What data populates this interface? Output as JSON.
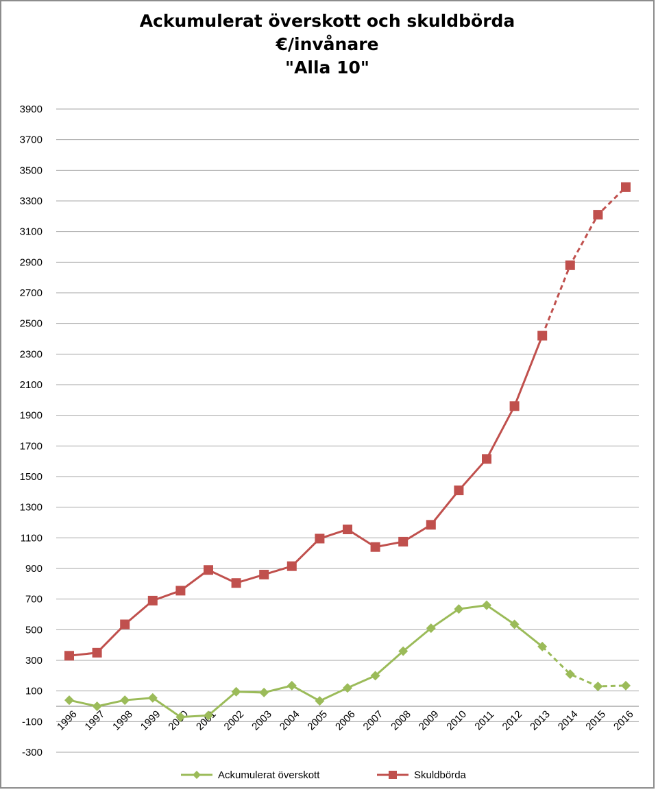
{
  "title": {
    "line1": "Ackumulerat överskott och skuldbörda",
    "line2": "€/invånare",
    "line3": "\"Alla  10\""
  },
  "colors": {
    "surplus": "#9bbb59",
    "debt": "#c0504d",
    "grid": "#a6a6a6"
  },
  "chart_data": {
    "type": "line",
    "title": "Ackumulerat överskott och skuldbörda €/invånare \"Alla  10\"",
    "xlabel": "",
    "ylabel": "",
    "x": [
      "1996",
      "1997",
      "1998",
      "1999",
      "2000",
      "2001",
      "2002",
      "2003",
      "2004",
      "2005",
      "2006",
      "2007",
      "2008",
      "2009",
      "2010",
      "2011",
      "2012",
      "2013",
      "2014",
      "2015",
      "2016"
    ],
    "ylim": [
      -300,
      3900
    ],
    "yticks": [
      3900,
      3700,
      3500,
      3300,
      3100,
      2900,
      2700,
      2500,
      2300,
      2100,
      1900,
      1700,
      1500,
      1300,
      1100,
      900,
      700,
      500,
      300,
      100,
      -100,
      -300
    ],
    "yticklabels": [
      "3900",
      "3700",
      "3500",
      "3300",
      "3100",
      "2900",
      "2700",
      "2500",
      "2300",
      "2100",
      "1900",
      "1700",
      "1500",
      "1300",
      "1100",
      "900",
      "700",
      "500",
      "300",
      "100",
      "-100",
      "-300"
    ],
    "grid": true,
    "legend_position": "bottom",
    "series": [
      {
        "name": "Ackumulerat överskott",
        "marker": "diamond",
        "color": "#9bbb59",
        "solid_until": "2013",
        "dashed_from": "2013",
        "values": [
          40,
          0,
          40,
          55,
          -70,
          -60,
          95,
          90,
          135,
          35,
          120,
          200,
          360,
          510,
          635,
          660,
          535,
          390,
          210,
          130,
          135
        ]
      },
      {
        "name": "Skuldbörda",
        "marker": "square",
        "color": "#c0504d",
        "solid_until": "2013",
        "dashed_from": "2013",
        "values": [
          330,
          350,
          535,
          690,
          755,
          890,
          805,
          860,
          915,
          1095,
          1155,
          1040,
          1075,
          1185,
          1410,
          1615,
          1960,
          2420,
          2880,
          3210,
          3390
        ]
      }
    ]
  }
}
